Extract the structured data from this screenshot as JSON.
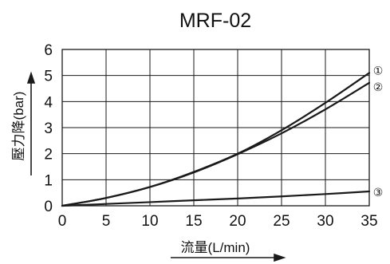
{
  "chart_data": {
    "type": "line",
    "title": "MRF-02",
    "xlabel": "流量(L/min)",
    "ylabel": "壓力降(bar)",
    "xlim": [
      0,
      35
    ],
    "ylim": [
      0,
      6
    ],
    "x_ticks": [
      "0",
      "5",
      "10",
      "15",
      "20",
      "25",
      "30",
      "35"
    ],
    "y_ticks": [
      "0",
      "1",
      "2",
      "3",
      "4",
      "5",
      "6"
    ],
    "grid": true,
    "series": [
      {
        "name": "①",
        "x": [
          0,
          5,
          10,
          15,
          20,
          25,
          30,
          35
        ],
        "values": [
          0,
          0.3,
          0.72,
          1.3,
          2.0,
          2.9,
          3.95,
          5.1
        ]
      },
      {
        "name": "②",
        "x": [
          0,
          5,
          10,
          15,
          20,
          25,
          30,
          35
        ],
        "values": [
          0,
          0.3,
          0.72,
          1.28,
          1.98,
          2.78,
          3.7,
          4.72
        ]
      },
      {
        "name": "③",
        "x": [
          0,
          5,
          10,
          15,
          20,
          25,
          30,
          35
        ],
        "values": [
          0,
          0.07,
          0.14,
          0.21,
          0.28,
          0.36,
          0.45,
          0.55
        ]
      }
    ]
  }
}
